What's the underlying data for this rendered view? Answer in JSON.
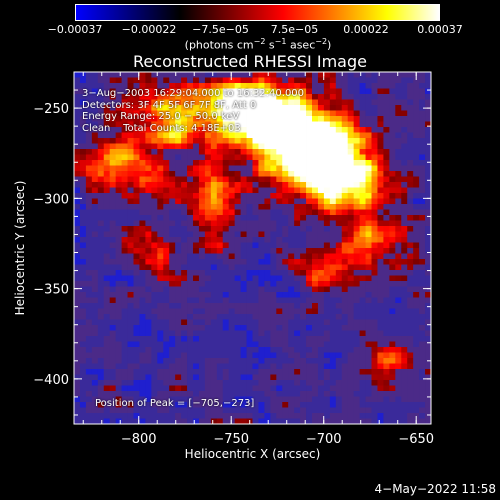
{
  "chart_data": {
    "type": "heatmap",
    "title": "Reconstructed RHESSI Image",
    "xlabel": "Heliocentric X (arcsec)",
    "ylabel": "Heliocentric Y (arcsec)",
    "xlim": [
      -835,
      -642
    ],
    "ylim": [
      -425,
      -230
    ],
    "x_ticks": [
      -800,
      -750,
      -700,
      -650
    ],
    "x_tick_labels": [
      "−800",
      "−750",
      "−700",
      "−650"
    ],
    "y_ticks": [
      -250,
      -300,
      -350,
      -400
    ],
    "y_tick_labels": [
      "−250",
      "−300",
      "−350",
      "−400"
    ],
    "colorbar": {
      "range": [
        -0.00037,
        0.00037
      ],
      "ticks": [
        -0.00037,
        -0.00022,
        -7.5e-05,
        7.5e-05,
        0.00022,
        0.00037
      ],
      "tick_labels": [
        "−0.00037",
        "−0.00022",
        "−7.5e−05",
        "7.5e−05",
        "0.00022",
        "0.00037"
      ],
      "unit_parts": [
        "(photons cm",
        "−2",
        " s",
        "−1",
        " asec",
        "−2",
        ")"
      ],
      "colors": [
        "#0000ff",
        "#000080",
        "#000000",
        "#800000",
        "#ff0000",
        "#ff8000",
        "#ffff00",
        "#ffffff"
      ]
    },
    "annotations": {
      "time_range": "3−Aug−2003 16:29:04.000 to 16:32:40.000",
      "detectors": "Detectors: 3F 4F 5F 6F 7F 8F, Att 0",
      "energy_range": "Energy Range: 25.0 − 50.0 keV",
      "algorithm": "Clean",
      "total_counts": "Total Counts: 4.18E+03",
      "peak": "Position of Peak = [−705,−273]"
    },
    "peak_position": [
      -705,
      -273
    ]
  },
  "footer": {
    "timestamp": "4−May−2022 11:58"
  }
}
